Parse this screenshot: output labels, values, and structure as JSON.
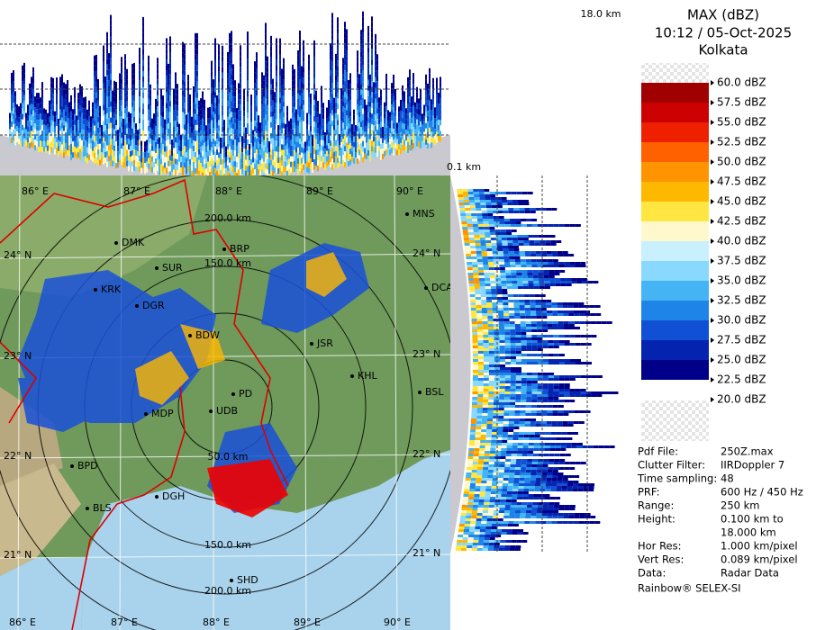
{
  "header": {
    "title": "MAX (dBZ)",
    "time": "10:12 / 05-Oct-2025",
    "site": "Kolkata"
  },
  "top_profile": {
    "height_label": "18.0 km"
  },
  "side_profile": {
    "height_label": "0.1 km"
  },
  "legend": {
    "labels": [
      "60.0 dBZ",
      "57.5 dBZ",
      "55.0 dBZ",
      "52.5 dBZ",
      "50.0 dBZ",
      "47.5 dBZ",
      "45.0 dBZ",
      "42.5 dBZ",
      "40.0 dBZ",
      "37.5 dBZ",
      "35.0 dBZ",
      "32.5 dBZ",
      "30.0 dBZ",
      "27.5 dBZ",
      "25.0 dBZ",
      "22.5 dBZ",
      "20.0 dBZ"
    ],
    "colors": [
      "#eeeeee",
      "#a00000",
      "#cc0000",
      "#ee2000",
      "#ff6000",
      "#ff9400",
      "#ffb800",
      "#ffe640",
      "#fff8cc",
      "#c8f0ff",
      "#88d8ff",
      "#44b4f4",
      "#1e84e8",
      "#1050d4",
      "#0424b0",
      "#000088"
    ]
  },
  "info": {
    "rows": [
      [
        "Pdf File:",
        "250Z.max"
      ],
      [
        "Clutter Filter:",
        "IIRDoppler 7"
      ],
      [
        "Time sampling:",
        "48"
      ],
      [
        "PRF:",
        "600 Hz / 450 Hz"
      ],
      [
        "Range:",
        "250 km"
      ],
      [
        "Height:",
        "0.100 km to"
      ],
      [
        "",
        "18.000 km"
      ],
      [
        "Hor Res:",
        "1.000 km/pixel"
      ],
      [
        "Vert Res:",
        "0.089 km/pixel"
      ],
      [
        "Data:",
        "Radar Data"
      ]
    ],
    "footer": "Rainbow® SELEX-SI"
  },
  "map": {
    "lon_labels": [
      "86° E",
      "87° E",
      "88° E",
      "89° E",
      "90° E"
    ],
    "lat_labels": [
      "24° N",
      "23° N",
      "22° N",
      "21° N"
    ],
    "ring_labels": {
      "top": [
        "200.0 km",
        "150.0 km"
      ],
      "bottom": [
        "50.0 km",
        "150.0 km",
        "200.0 km"
      ]
    },
    "cities": [
      "DMK",
      "SUR",
      "BRP",
      "KRK",
      "DGR",
      "BDW",
      "JSR",
      "KHL",
      "BSL",
      "PD",
      "UDB",
      "MDP",
      "BPD",
      "DGH",
      "BLS",
      "SHD",
      "MNS",
      "DCA"
    ]
  }
}
